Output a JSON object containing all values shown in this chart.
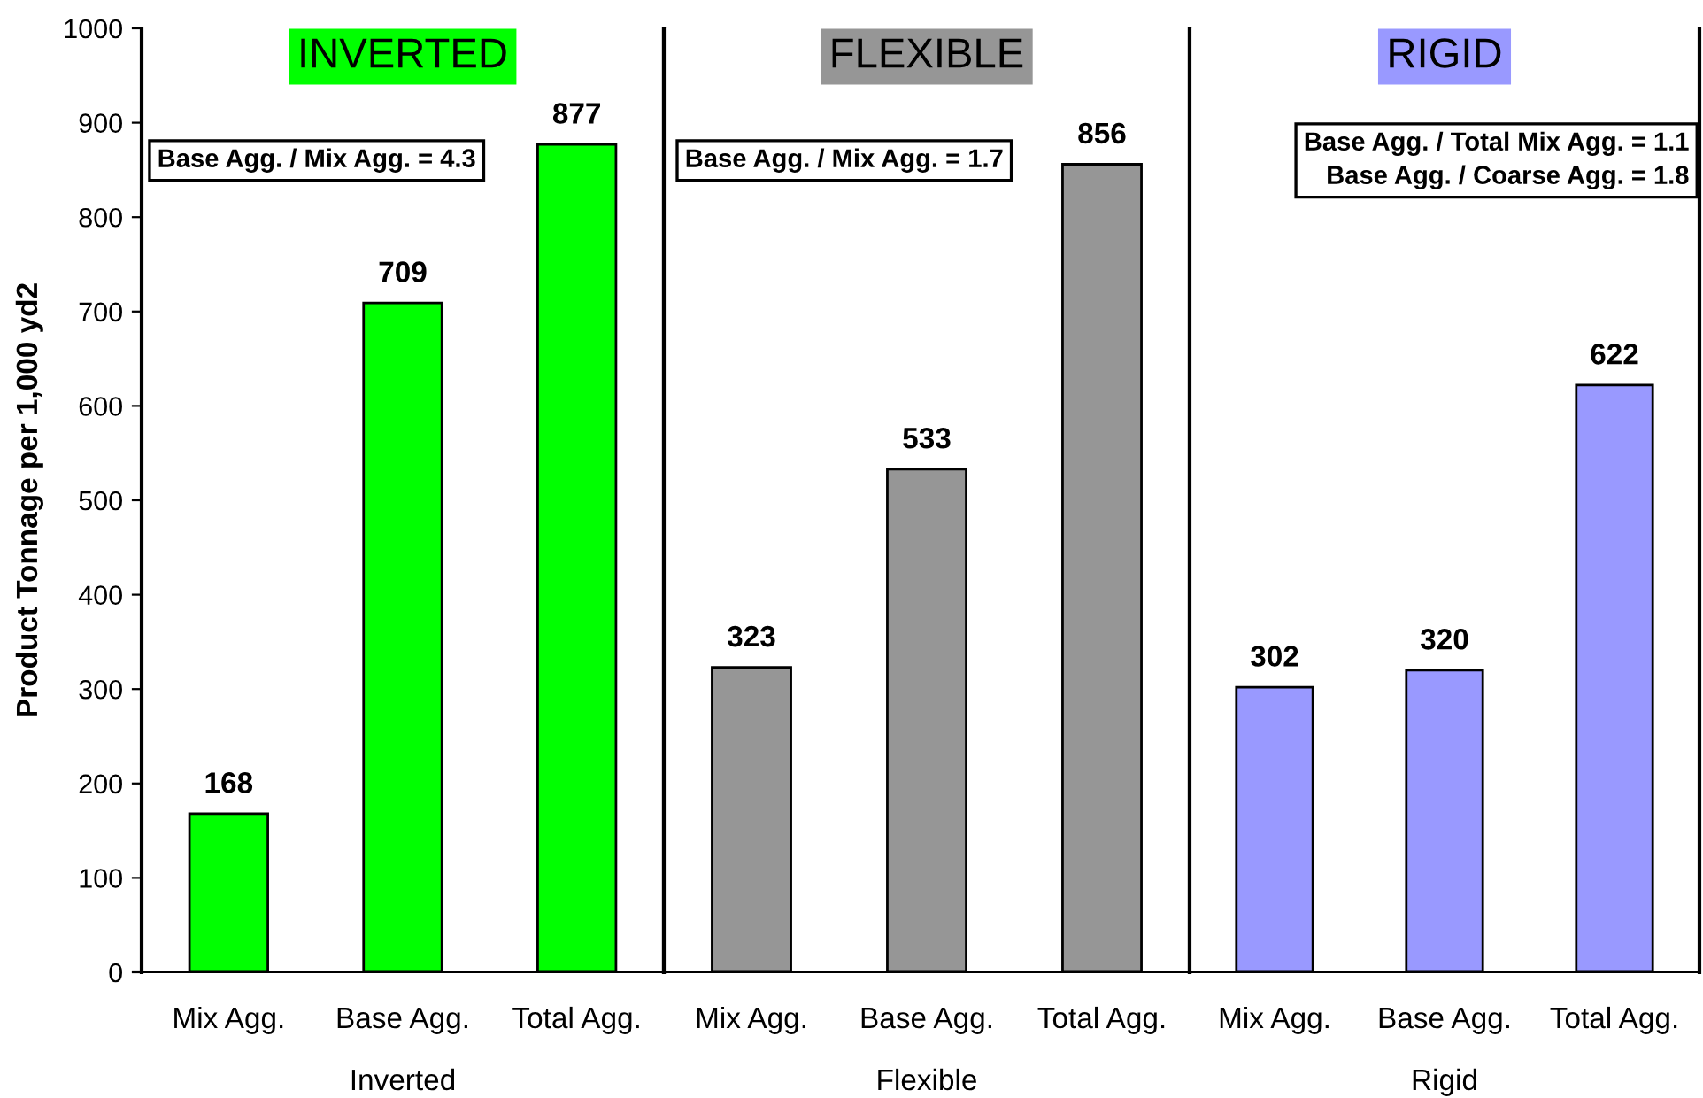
{
  "chart_data": [
    {
      "type": "bar",
      "title": "INVERTED",
      "xlabel": "Inverted",
      "ylabel": "Product Tonnage per 1,000 yd2",
      "categories": [
        "Mix Agg.",
        "Base Agg.",
        "Total Agg."
      ],
      "values": [
        168,
        709,
        877
      ],
      "color": "#00ff00",
      "data_labels": true,
      "ylim": [
        0,
        1000
      ],
      "yticks": [
        0,
        100,
        200,
        300,
        400,
        500,
        600,
        700,
        800,
        900,
        1000
      ],
      "grid": false,
      "annotations": [
        "Base Agg. / Mix Agg. = 4.3"
      ]
    },
    {
      "type": "bar",
      "title": "FLEXIBLE",
      "xlabel": "Flexible",
      "categories": [
        "Mix Agg.",
        "Base Agg.",
        "Total Agg."
      ],
      "values": [
        323,
        533,
        856
      ],
      "color": "#969696",
      "data_labels": true,
      "ylim": [
        0,
        1000
      ],
      "yticks": [
        0,
        100,
        200,
        300,
        400,
        500,
        600,
        700,
        800,
        900,
        1000
      ],
      "tick_labels": "x",
      "grid": false,
      "annotations": [
        "Base Agg. / Mix Agg. = 1.7"
      ]
    },
    {
      "type": "bar",
      "title": "RIGID",
      "xlabel": "Rigid",
      "categories": [
        "Mix Agg.",
        "Base Agg.",
        "Total Agg."
      ],
      "values": [
        302,
        320,
        622
      ],
      "color": "#9999ff",
      "data_labels": true,
      "ylim": [
        0,
        1000
      ],
      "yticks": [
        0,
        100,
        200,
        300,
        400,
        500,
        600,
        700,
        800,
        900,
        1000
      ],
      "tick_labels": "x",
      "grid": false,
      "annotations": [
        "Base Agg. / Total Mix Agg. = 1.1\nBase Agg. / Coarse Agg. = 1.8"
      ]
    }
  ]
}
